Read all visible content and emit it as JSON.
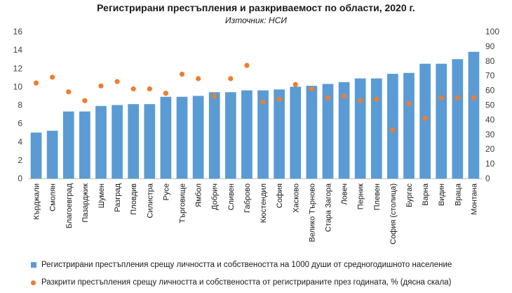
{
  "chart_data": {
    "type": "bar",
    "title": "Регистрирани престъпления и разкриваемост по области, 2020 г.",
    "subtitle": "Източник: НСИ",
    "categories": [
      "Кърджали",
      "Смолян",
      "Благоевград",
      "Пазарджик",
      "Шумен",
      "Разград",
      "Пловдив",
      "Силистра",
      "Русе",
      "Търговище",
      "Ямбол",
      "Добрич",
      "Сливен",
      "Габрово",
      "Кюстендил",
      "София",
      "Хасково",
      "Велико Търново",
      "Стара Загора",
      "Ловеч",
      "Перник",
      "Плевен",
      "София (столица)",
      "Бургас",
      "Варна",
      "Видин",
      "Враца",
      "Монтана"
    ],
    "series": [
      {
        "name": "Регистрирани престъпления срещу личността и собствеността на 1000 души от средногодишното население",
        "type": "bar",
        "axis": "left",
        "color": "#5b9bd5",
        "values": [
          5.0,
          5.2,
          7.3,
          7.3,
          7.9,
          8.0,
          8.1,
          8.1,
          8.9,
          8.9,
          9.0,
          9.4,
          9.4,
          9.6,
          9.6,
          9.7,
          10.0,
          10.1,
          10.3,
          10.5,
          10.9,
          10.9,
          11.4,
          11.5,
          12.5,
          12.5,
          13.0,
          13.8
        ]
      },
      {
        "name": "Разкрити престъпления срещу личността и собствеността от регистрираните през годината, % (дясна скала)",
        "type": "scatter",
        "axis": "right",
        "color": "#ed7d31",
        "values": [
          65,
          69,
          59,
          53,
          63,
          66,
          61,
          61,
          58,
          71,
          68,
          56,
          68,
          77,
          52,
          54,
          64,
          61,
          55,
          56,
          53,
          54,
          33,
          51,
          41,
          55,
          55,
          55
        ]
      }
    ],
    "ylim": [
      0,
      16
    ],
    "yticks": [
      "0",
      "2",
      "4",
      "6",
      "8",
      "10",
      "12",
      "14",
      "16"
    ],
    "y2lim": [
      0,
      100
    ],
    "y2ticks": [
      "0",
      "10",
      "20",
      "30",
      "40",
      "50",
      "60",
      "70",
      "80",
      "90",
      "100"
    ],
    "legend_position": "bottom"
  }
}
